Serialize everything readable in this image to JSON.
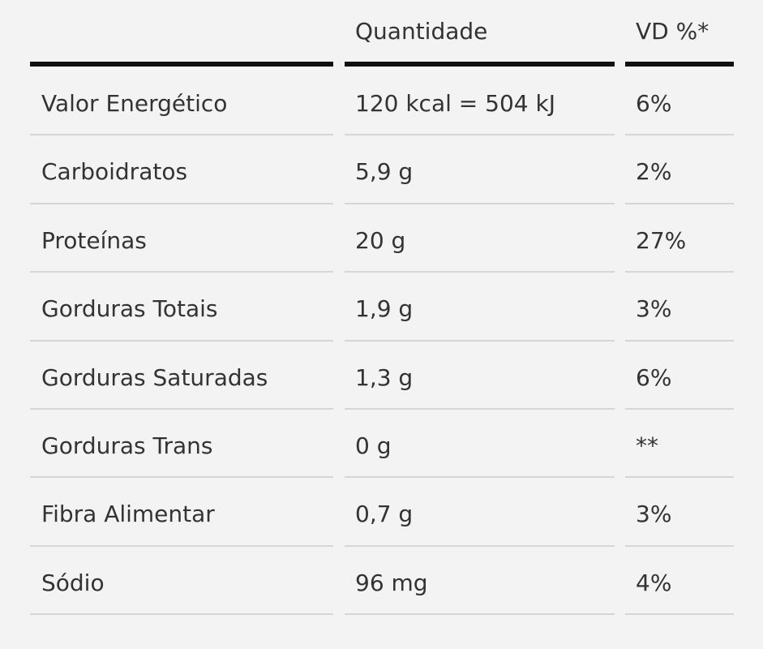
{
  "table": {
    "header": {
      "quantity": "Quantidade",
      "daily_value": "VD %*"
    },
    "rows": [
      [
        "Valor Energético",
        "120 kcal = 504 kJ",
        "6%"
      ],
      [
        "Carboidratos",
        "5,9 g",
        "2%"
      ],
      [
        "Proteínas",
        "20 g",
        "27%"
      ],
      [
        "Gorduras Totais",
        "1,9 g",
        "3%"
      ],
      [
        "Gorduras Saturadas",
        "1,3 g",
        "6%"
      ],
      [
        "Gorduras Trans",
        "0 g",
        "**"
      ],
      [
        "Fibra Alimentar",
        "0,7 g",
        "3%"
      ],
      [
        "Sódio",
        "96 mg",
        "4%"
      ]
    ]
  }
}
